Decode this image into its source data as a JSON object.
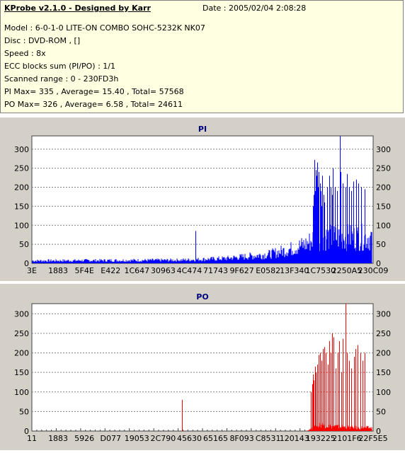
{
  "header": {
    "title": "KProbe v2.1.0 - Designed by Karr",
    "date": "Date : 2005/02/04 2:08:28",
    "lines": [
      "Model : 6-0-1-0 LITE-ON COMBO SOHC-5232K NK07",
      "Disc : DVD-ROM ,  []",
      "Speed : 8x",
      "ECC blocks sum (PI/PO) : 1/1",
      "Scanned range : 0 - 230FD3h",
      "PI Max= 335 , Average= 15.40 , Total= 57568",
      "PO Max= 326 , Average= 6.58 , Total= 24611"
    ]
  },
  "colors": {
    "pi": "#0000ff",
    "po": "#ff0000",
    "title": "#000080",
    "plot_bg": "#ffffff",
    "panel_bg": "#d4d0c8"
  },
  "chart_data": [
    {
      "type": "bar",
      "title": "PI",
      "ylim": [
        0,
        335
      ],
      "yticks": [
        0,
        50,
        100,
        150,
        200,
        250,
        300
      ],
      "xlim": [
        0,
        2297811
      ],
      "xticks": [
        "3E",
        "1883",
        "5F4E",
        "E422",
        "1C647",
        "30963",
        "4C474",
        "71743",
        "9F627",
        "E0582",
        "13F340",
        "1C7530",
        "2250A5",
        "230C09"
      ],
      "grid": true,
      "series": [
        {
          "color": "#0000ff",
          "baseline_by_x": [
            [
              0,
              8
            ],
            [
              1000000,
              10
            ],
            [
              1300000,
              15
            ],
            [
              1600000,
              28
            ],
            [
              1750000,
              45
            ],
            [
              1850000,
              60
            ],
            [
              1910000,
              80
            ]
          ],
          "spikes": [
            {
              "x": 1100000,
              "y": 85
            },
            {
              "x": 1892000,
              "y": 150
            },
            {
              "x": 1896000,
              "y": 180
            },
            {
              "x": 1900000,
              "y": 220
            },
            {
              "x": 1904000,
              "y": 272
            },
            {
              "x": 1908000,
              "y": 190
            },
            {
              "x": 1912000,
              "y": 245
            },
            {
              "x": 1916000,
              "y": 230
            },
            {
              "x": 1920000,
              "y": 265
            },
            {
              "x": 1926000,
              "y": 200
            },
            {
              "x": 1932000,
              "y": 240
            },
            {
              "x": 1938000,
              "y": 210
            },
            {
              "x": 1944000,
              "y": 190
            },
            {
              "x": 1950000,
              "y": 150
            },
            {
              "x": 1956000,
              "y": 230
            },
            {
              "x": 1962000,
              "y": 180
            },
            {
              "x": 1968000,
              "y": 160
            },
            {
              "x": 1990000,
              "y": 200
            },
            {
              "x": 2004000,
              "y": 230
            },
            {
              "x": 2010000,
              "y": 200
            },
            {
              "x": 2020000,
              "y": 180
            },
            {
              "x": 2028000,
              "y": 250
            },
            {
              "x": 2040000,
              "y": 200
            },
            {
              "x": 2056000,
              "y": 190
            },
            {
              "x": 2072000,
              "y": 335
            },
            {
              "x": 2080000,
              "y": 240
            },
            {
              "x": 2092000,
              "y": 210
            },
            {
              "x": 2110000,
              "y": 200
            },
            {
              "x": 2120000,
              "y": 235
            },
            {
              "x": 2135000,
              "y": 200
            },
            {
              "x": 2150000,
              "y": 190
            },
            {
              "x": 2165000,
              "y": 215
            },
            {
              "x": 2182000,
              "y": 220
            },
            {
              "x": 2196000,
              "y": 210
            },
            {
              "x": 2215000,
              "y": 200
            },
            {
              "x": 2240000,
              "y": 195
            }
          ]
        }
      ]
    },
    {
      "type": "bar",
      "title": "PO",
      "ylim": [
        0,
        326
      ],
      "yticks": [
        0,
        50,
        100,
        150,
        200,
        250,
        300
      ],
      "xlim": [
        0,
        2297811
      ],
      "xticks": [
        "11",
        "1883",
        "5926",
        "D077",
        "19053",
        "2C790",
        "45630",
        "65165",
        "8F093",
        "C8531",
        "120143",
        "193225",
        "2101F6",
        "22F5E5"
      ],
      "grid": true,
      "series": [
        {
          "color": "#ff0000",
          "baseline_by_x": [
            [
              0,
              0
            ],
            [
              1850000,
              0
            ],
            [
              1870000,
              5
            ],
            [
              1900000,
              10
            ],
            [
              1950000,
              20
            ],
            [
              2000000,
              15
            ],
            [
              2200000,
              10
            ]
          ],
          "spikes": [
            {
              "x": 1010000,
              "y": 80
            },
            {
              "x": 1880000,
              "y": 100
            },
            {
              "x": 1886000,
              "y": 120
            },
            {
              "x": 1892000,
              "y": 145
            },
            {
              "x": 1898000,
              "y": 130
            },
            {
              "x": 1905000,
              "y": 165
            },
            {
              "x": 1912000,
              "y": 150
            },
            {
              "x": 1920000,
              "y": 170
            },
            {
              "x": 1930000,
              "y": 195
            },
            {
              "x": 1940000,
              "y": 200
            },
            {
              "x": 1950000,
              "y": 180
            },
            {
              "x": 1960000,
              "y": 210
            },
            {
              "x": 1970000,
              "y": 215
            },
            {
              "x": 1980000,
              "y": 200
            },
            {
              "x": 1992000,
              "y": 170
            },
            {
              "x": 2002000,
              "y": 230
            },
            {
              "x": 2010000,
              "y": 200
            },
            {
              "x": 2020000,
              "y": 250
            },
            {
              "x": 2030000,
              "y": 240
            },
            {
              "x": 2045000,
              "y": 160
            },
            {
              "x": 2060000,
              "y": 200
            },
            {
              "x": 2070000,
              "y": 230
            },
            {
              "x": 2085000,
              "y": 150
            },
            {
              "x": 2095000,
              "y": 236
            },
            {
              "x": 2110000,
              "y": 326
            },
            {
              "x": 2120000,
              "y": 200
            },
            {
              "x": 2135000,
              "y": 180
            },
            {
              "x": 2150000,
              "y": 160
            },
            {
              "x": 2168000,
              "y": 190
            },
            {
              "x": 2180000,
              "y": 210
            },
            {
              "x": 2195000,
              "y": 220
            },
            {
              "x": 2210000,
              "y": 200
            },
            {
              "x": 2225000,
              "y": 180
            },
            {
              "x": 2240000,
              "y": 200
            }
          ]
        }
      ]
    }
  ]
}
